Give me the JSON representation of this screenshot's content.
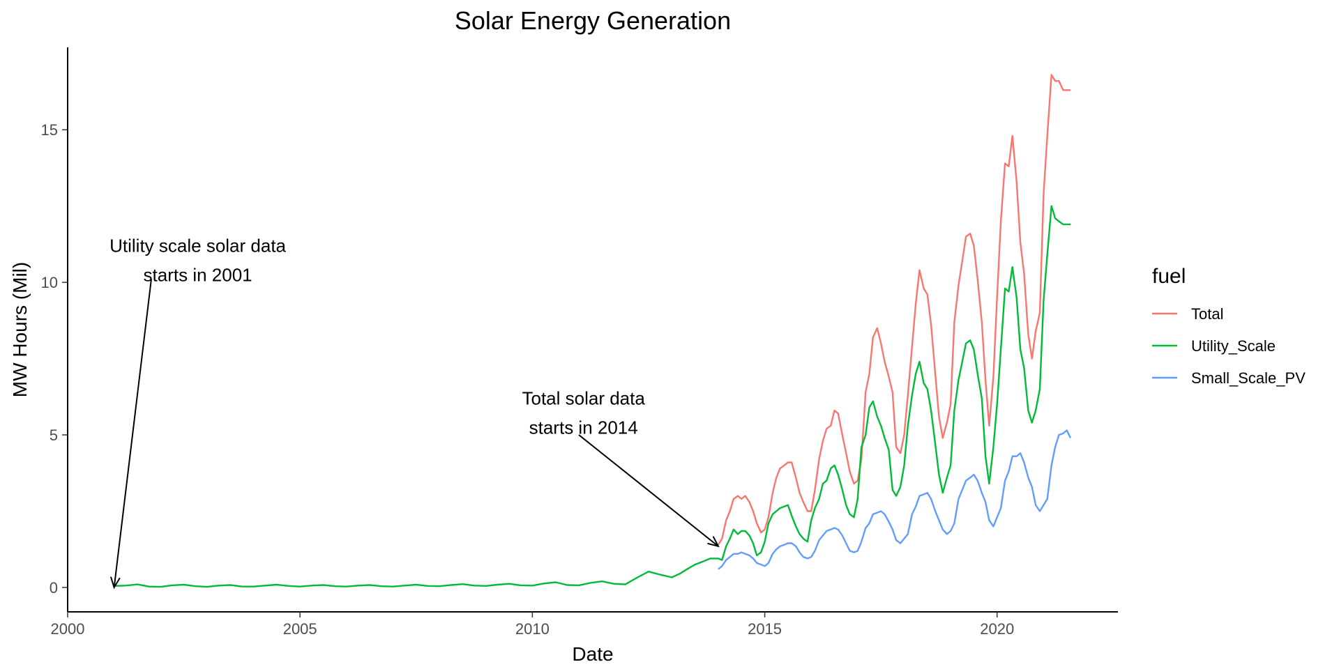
{
  "chart_data": {
    "type": "line",
    "title": "Solar Energy Generation",
    "xlabel": "Date",
    "ylabel": "MW Hours (Mil)",
    "xlim": [
      2000,
      2022.6
    ],
    "ylim": [
      -0.8,
      17.7
    ],
    "x_ticks": [
      2000,
      2005,
      2010,
      2015,
      2020
    ],
    "x_tick_labels": [
      "2000",
      "2005",
      "2010",
      "2015",
      "2020"
    ],
    "y_ticks": [
      0,
      5,
      10,
      15
    ],
    "y_tick_labels": [
      "0",
      "5",
      "10",
      "15"
    ],
    "grid": false,
    "legend": {
      "title": "fuel",
      "position": "right"
    },
    "series": [
      {
        "name": "Total",
        "color": "#F8766D",
        "x": [
          2014.0,
          2014.08,
          2014.17,
          2014.25,
          2014.33,
          2014.42,
          2014.5,
          2014.58,
          2014.67,
          2014.75,
          2014.83,
          2014.92,
          2015.0,
          2015.08,
          2015.17,
          2015.25,
          2015.33,
          2015.42,
          2015.5,
          2015.58,
          2015.67,
          2015.75,
          2015.83,
          2015.92,
          2016.0,
          2016.08,
          2016.17,
          2016.25,
          2016.33,
          2016.42,
          2016.5,
          2016.58,
          2016.67,
          2016.75,
          2016.83,
          2016.92,
          2017.0,
          2017.08,
          2017.17,
          2017.25,
          2017.33,
          2017.42,
          2017.5,
          2017.58,
          2017.67,
          2017.75,
          2017.83,
          2017.92,
          2018.0,
          2018.08,
          2018.17,
          2018.25,
          2018.33,
          2018.42,
          2018.5,
          2018.58,
          2018.67,
          2018.75,
          2018.83,
          2018.92,
          2019.0,
          2019.08,
          2019.17,
          2019.25,
          2019.33,
          2019.42,
          2019.5,
          2019.58,
          2019.67,
          2019.75,
          2019.83,
          2019.92,
          2020.0,
          2020.08,
          2020.17,
          2020.25,
          2020.33,
          2020.42,
          2020.5,
          2020.58,
          2020.67,
          2020.75,
          2020.83,
          2020.92,
          2021.0,
          2021.08,
          2021.17,
          2021.25,
          2021.33,
          2021.42,
          2021.5,
          2021.58
        ],
        "y": [
          1.4,
          1.6,
          2.2,
          2.5,
          2.9,
          3.0,
          2.9,
          3.0,
          2.8,
          2.5,
          2.1,
          1.8,
          1.9,
          2.3,
          3.1,
          3.6,
          3.9,
          4.0,
          4.1,
          4.1,
          3.6,
          3.1,
          2.8,
          2.5,
          2.5,
          3.2,
          4.2,
          4.8,
          5.2,
          5.3,
          5.8,
          5.7,
          5.0,
          4.4,
          3.8,
          3.4,
          3.5,
          4.2,
          6.4,
          7.0,
          8.2,
          8.5,
          8.0,
          7.4,
          6.9,
          6.4,
          4.6,
          4.4,
          5.0,
          6.3,
          7.9,
          9.3,
          10.4,
          9.8,
          9.6,
          8.6,
          7.0,
          5.6,
          4.9,
          5.4,
          6.0,
          8.7,
          9.9,
          10.7,
          11.5,
          11.6,
          11.2,
          10.1,
          8.7,
          6.8,
          5.3,
          6.9,
          9.5,
          12.0,
          13.9,
          13.8,
          14.8,
          13.3,
          11.3,
          10.3,
          8.3,
          7.5,
          8.4,
          9.0,
          12.9,
          14.8,
          16.8,
          16.6,
          16.6,
          16.3,
          16.3,
          16.3
        ]
      },
      {
        "name": "Utility_Scale",
        "color": "#00BA38",
        "x": [
          2001.0,
          2001.25,
          2001.5,
          2001.75,
          2002.0,
          2002.25,
          2002.5,
          2002.75,
          2003.0,
          2003.25,
          2003.5,
          2003.75,
          2004.0,
          2004.25,
          2004.5,
          2004.75,
          2005.0,
          2005.25,
          2005.5,
          2005.75,
          2006.0,
          2006.25,
          2006.5,
          2006.75,
          2007.0,
          2007.25,
          2007.5,
          2007.75,
          2008.0,
          2008.25,
          2008.5,
          2008.75,
          2009.0,
          2009.25,
          2009.5,
          2009.75,
          2010.0,
          2010.25,
          2010.5,
          2010.75,
          2011.0,
          2011.25,
          2011.5,
          2011.75,
          2012.0,
          2012.25,
          2012.5,
          2012.75,
          2013.0,
          2013.17,
          2013.33,
          2013.5,
          2013.67,
          2013.83,
          2014.0,
          2014.08,
          2014.17,
          2014.25,
          2014.33,
          2014.42,
          2014.5,
          2014.58,
          2014.67,
          2014.75,
          2014.83,
          2014.92,
          2015.0,
          2015.08,
          2015.17,
          2015.25,
          2015.33,
          2015.42,
          2015.5,
          2015.58,
          2015.67,
          2015.75,
          2015.83,
          2015.92,
          2016.0,
          2016.08,
          2016.17,
          2016.25,
          2016.33,
          2016.42,
          2016.5,
          2016.58,
          2016.67,
          2016.75,
          2016.83,
          2016.92,
          2017.0,
          2017.08,
          2017.17,
          2017.25,
          2017.33,
          2017.42,
          2017.5,
          2017.58,
          2017.67,
          2017.75,
          2017.83,
          2017.92,
          2018.0,
          2018.08,
          2018.17,
          2018.25,
          2018.33,
          2018.42,
          2018.5,
          2018.58,
          2018.67,
          2018.75,
          2018.83,
          2018.92,
          2019.0,
          2019.08,
          2019.17,
          2019.25,
          2019.33,
          2019.42,
          2019.5,
          2019.58,
          2019.67,
          2019.75,
          2019.83,
          2019.92,
          2020.0,
          2020.08,
          2020.17,
          2020.25,
          2020.33,
          2020.42,
          2020.5,
          2020.58,
          2020.67,
          2020.75,
          2020.83,
          2020.92,
          2021.0,
          2021.08,
          2021.17,
          2021.25,
          2021.33,
          2021.42,
          2021.5,
          2021.58
        ],
        "y": [
          0.05,
          0.06,
          0.1,
          0.03,
          0.02,
          0.07,
          0.09,
          0.04,
          0.02,
          0.06,
          0.08,
          0.03,
          0.03,
          0.06,
          0.09,
          0.05,
          0.03,
          0.06,
          0.08,
          0.04,
          0.03,
          0.06,
          0.08,
          0.04,
          0.03,
          0.06,
          0.09,
          0.05,
          0.04,
          0.08,
          0.11,
          0.06,
          0.05,
          0.09,
          0.12,
          0.07,
          0.06,
          0.13,
          0.17,
          0.08,
          0.07,
          0.15,
          0.2,
          0.12,
          0.1,
          0.32,
          0.52,
          0.42,
          0.33,
          0.45,
          0.6,
          0.75,
          0.85,
          0.95,
          0.95,
          0.9,
          1.35,
          1.6,
          1.9,
          1.75,
          1.85,
          1.85,
          1.7,
          1.45,
          1.05,
          1.15,
          1.5,
          2.1,
          2.4,
          2.5,
          2.6,
          2.65,
          2.7,
          2.35,
          2.0,
          1.75,
          1.6,
          1.5,
          2.2,
          2.6,
          2.9,
          3.4,
          3.5,
          3.9,
          4.0,
          3.7,
          3.2,
          2.7,
          2.4,
          2.3,
          2.9,
          4.6,
          5.0,
          5.9,
          6.1,
          5.6,
          5.3,
          4.9,
          4.5,
          3.2,
          3.0,
          3.3,
          4.0,
          5.3,
          6.3,
          7.0,
          7.4,
          6.7,
          6.5,
          5.8,
          4.7,
          3.7,
          3.1,
          3.6,
          4.0,
          5.8,
          6.8,
          7.4,
          8.0,
          8.1,
          7.8,
          7.0,
          6.2,
          4.3,
          3.4,
          4.6,
          6.0,
          7.8,
          9.8,
          9.7,
          10.5,
          9.5,
          7.8,
          7.2,
          5.8,
          5.4,
          5.8,
          6.5,
          9.4,
          10.9,
          12.5,
          12.1,
          12.0,
          11.9,
          11.9,
          11.9
        ]
      },
      {
        "name": "Small_Scale_PV",
        "color": "#619CFF",
        "x": [
          2014.0,
          2014.08,
          2014.17,
          2014.25,
          2014.33,
          2014.42,
          2014.5,
          2014.58,
          2014.67,
          2014.75,
          2014.83,
          2014.92,
          2015.0,
          2015.08,
          2015.17,
          2015.25,
          2015.33,
          2015.42,
          2015.5,
          2015.58,
          2015.67,
          2015.75,
          2015.83,
          2015.92,
          2016.0,
          2016.08,
          2016.17,
          2016.25,
          2016.33,
          2016.42,
          2016.5,
          2016.58,
          2016.67,
          2016.75,
          2016.83,
          2016.92,
          2017.0,
          2017.08,
          2017.17,
          2017.25,
          2017.33,
          2017.42,
          2017.5,
          2017.58,
          2017.67,
          2017.75,
          2017.83,
          2017.92,
          2018.0,
          2018.08,
          2018.17,
          2018.25,
          2018.33,
          2018.42,
          2018.5,
          2018.58,
          2018.67,
          2018.75,
          2018.83,
          2018.92,
          2019.0,
          2019.08,
          2019.17,
          2019.25,
          2019.33,
          2019.42,
          2019.5,
          2019.58,
          2019.67,
          2019.75,
          2019.83,
          2019.92,
          2020.0,
          2020.08,
          2020.17,
          2020.25,
          2020.33,
          2020.42,
          2020.5,
          2020.58,
          2020.67,
          2020.75,
          2020.83,
          2020.92,
          2021.0,
          2021.08,
          2021.17,
          2021.25,
          2021.33,
          2021.42,
          2021.5,
          2021.58
        ],
        "y": [
          0.6,
          0.7,
          0.9,
          1.0,
          1.1,
          1.1,
          1.15,
          1.1,
          1.05,
          0.95,
          0.8,
          0.75,
          0.7,
          0.8,
          1.1,
          1.25,
          1.35,
          1.4,
          1.45,
          1.45,
          1.35,
          1.15,
          1.0,
          0.95,
          1.0,
          1.2,
          1.55,
          1.7,
          1.85,
          1.9,
          1.95,
          1.9,
          1.7,
          1.45,
          1.2,
          1.15,
          1.2,
          1.5,
          1.95,
          2.1,
          2.4,
          2.45,
          2.5,
          2.4,
          2.15,
          1.9,
          1.55,
          1.45,
          1.6,
          1.75,
          2.4,
          2.65,
          3.0,
          3.05,
          3.1,
          2.9,
          2.5,
          2.2,
          1.9,
          1.75,
          1.85,
          2.1,
          2.9,
          3.2,
          3.5,
          3.6,
          3.7,
          3.5,
          3.1,
          2.8,
          2.2,
          2.0,
          2.3,
          2.6,
          3.5,
          3.8,
          4.3,
          4.3,
          4.4,
          4.1,
          3.6,
          3.3,
          2.7,
          2.5,
          2.7,
          2.9,
          4.0,
          4.6,
          5.0,
          5.05,
          5.15,
          4.9
        ]
      }
    ],
    "annotations": [
      {
        "text_lines": [
          "Utility scale solar data",
          "starts in 2001"
        ],
        "text_x": 2002.8,
        "text_y": 11.0,
        "arrow_from": [
          2001.8,
          10.1
        ],
        "arrow_to": [
          2001.0,
          0.0
        ]
      },
      {
        "text_lines": [
          "Total solar data",
          "starts in 2014"
        ],
        "text_x": 2011.1,
        "text_y": 6.0,
        "arrow_from": [
          2011.0,
          5.0
        ],
        "arrow_to": [
          2014.0,
          1.35
        ]
      }
    ]
  }
}
